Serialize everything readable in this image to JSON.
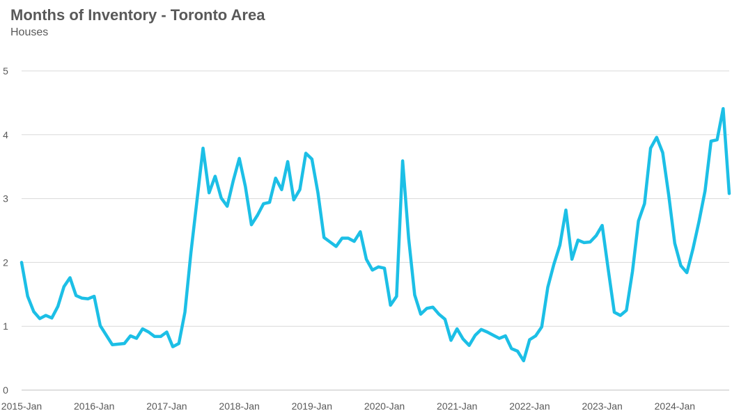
{
  "chart_data": {
    "type": "line",
    "title": "Months of Inventory - Toronto Area",
    "subtitle": "Houses",
    "xlabel": "",
    "ylabel": "",
    "ylim": [
      0,
      5
    ],
    "yticks": [
      0,
      1,
      2,
      3,
      4,
      5
    ],
    "xlim": [
      "2015-01",
      "2024-10"
    ],
    "xticks": [
      "2015-Jan",
      "2016-Jan",
      "2017-Jan",
      "2018-Jan",
      "2019-Jan",
      "2020-Jan",
      "2021-Jan",
      "2022-Jan",
      "2023-Jan",
      "2024-Jan"
    ],
    "grid": true,
    "color": "#1CBFE6",
    "series": [
      {
        "name": "",
        "x": [
          "2015-01",
          "2015-02",
          "2015-03",
          "2015-04",
          "2015-05",
          "2015-06",
          "2015-07",
          "2015-08",
          "2015-09",
          "2015-10",
          "2015-11",
          "2015-12",
          "2016-01",
          "2016-02",
          "2016-03",
          "2016-04",
          "2016-05",
          "2016-06",
          "2016-07",
          "2016-08",
          "2016-09",
          "2016-10",
          "2016-11",
          "2016-12",
          "2017-01",
          "2017-02",
          "2017-03",
          "2017-04",
          "2017-05",
          "2017-06",
          "2017-07",
          "2017-08",
          "2017-09",
          "2017-10",
          "2017-11",
          "2017-12",
          "2018-01",
          "2018-02",
          "2018-03",
          "2018-04",
          "2018-05",
          "2018-06",
          "2018-07",
          "2018-08",
          "2018-09",
          "2018-10",
          "2018-11",
          "2018-12",
          "2019-01",
          "2019-02",
          "2019-03",
          "2019-04",
          "2019-05",
          "2019-06",
          "2019-07",
          "2019-08",
          "2019-09",
          "2019-10",
          "2019-11",
          "2019-12",
          "2020-01",
          "2020-02",
          "2020-03",
          "2020-04",
          "2020-05",
          "2020-06",
          "2020-07",
          "2020-08",
          "2020-09",
          "2020-10",
          "2020-11",
          "2020-12",
          "2021-01",
          "2021-02",
          "2021-03",
          "2021-04",
          "2021-05",
          "2021-06",
          "2021-07",
          "2021-08",
          "2021-09",
          "2021-10",
          "2021-11",
          "2021-12",
          "2022-01",
          "2022-02",
          "2022-03",
          "2022-04",
          "2022-05",
          "2022-06",
          "2022-07",
          "2022-08",
          "2022-09",
          "2022-10",
          "2022-11",
          "2022-12",
          "2023-01",
          "2023-02",
          "2023-03",
          "2023-04",
          "2023-05",
          "2023-06",
          "2023-07",
          "2023-08",
          "2023-09",
          "2023-10",
          "2023-11",
          "2023-12",
          "2024-01",
          "2024-02",
          "2024-03",
          "2024-04",
          "2024-05",
          "2024-06",
          "2024-07",
          "2024-08",
          "2024-09",
          "2024-10"
        ],
        "values": [
          2.0,
          1.47,
          1.23,
          1.12,
          1.17,
          1.13,
          1.31,
          1.62,
          1.76,
          1.48,
          1.44,
          1.43,
          1.47,
          1.01,
          0.86,
          0.71,
          0.72,
          0.73,
          0.85,
          0.81,
          0.96,
          0.91,
          0.84,
          0.84,
          0.91,
          0.68,
          0.73,
          1.22,
          2.15,
          2.97,
          3.79,
          3.09,
          3.35,
          3.01,
          2.88,
          3.28,
          3.63,
          3.19,
          2.59,
          2.74,
          2.92,
          2.94,
          3.32,
          3.14,
          3.58,
          2.98,
          3.14,
          3.71,
          3.62,
          3.09,
          2.39,
          2.32,
          2.25,
          2.38,
          2.38,
          2.33,
          2.48,
          2.05,
          1.88,
          1.93,
          1.91,
          1.33,
          1.47,
          3.59,
          2.37,
          1.49,
          1.19,
          1.28,
          1.3,
          1.19,
          1.11,
          0.78,
          0.96,
          0.8,
          0.7,
          0.86,
          0.95,
          0.91,
          0.86,
          0.81,
          0.85,
          0.65,
          0.61,
          0.46,
          0.79,
          0.85,
          0.99,
          1.61,
          1.97,
          2.27,
          2.82,
          2.05,
          2.35,
          2.31,
          2.32,
          2.42,
          2.58,
          1.89,
          1.22,
          1.17,
          1.25,
          1.86,
          2.65,
          2.92,
          3.79,
          3.96,
          3.72,
          3.05,
          2.3,
          1.95,
          1.84,
          2.21,
          2.64,
          3.12,
          3.9,
          3.92,
          4.41,
          3.08
        ]
      }
    ]
  }
}
